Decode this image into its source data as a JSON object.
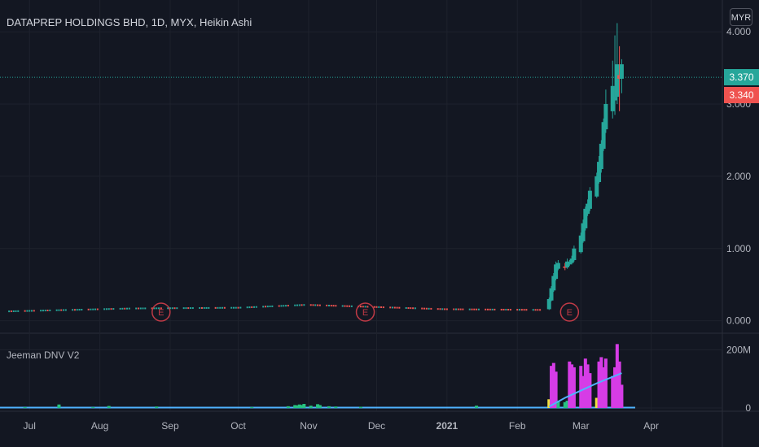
{
  "header": {
    "title": "DATAPREP HOLDINGS BHD, 1D, MYX, Heikin Ashi",
    "currency": "MYR"
  },
  "price_tags": {
    "last": "3.370",
    "prev": "3.340"
  },
  "indicator": {
    "title": "Jeeman DNV V2"
  },
  "colors": {
    "bg": "#131722",
    "up": "#26a69a",
    "down": "#ef5350",
    "grid": "#1e222d",
    "magenta": "#d63ce6",
    "green_vol": "#26c281",
    "yellow_vol": "#f0e23c",
    "ma": "#4fb3ff",
    "earn": "#c03a46"
  },
  "chart_data": [
    {
      "type": "candlestick",
      "title": "DATAPREP HOLDINGS BHD, 1D, MYX, Heikin Ashi",
      "y_ticks": [
        "4.000",
        "3.000",
        "2.000",
        "1.000",
        "0.000"
      ],
      "ylim": [
        -0.15,
        4.35
      ],
      "x_ticks": [
        "Jul",
        "Aug",
        "Sep",
        "Oct",
        "Nov",
        "Dec",
        "2021",
        "Feb",
        "Mar",
        "Apr"
      ],
      "x_tick_dates": [
        "2020-07-01",
        "2020-08-01",
        "2020-09-01",
        "2020-10-01",
        "2020-11-01",
        "2020-12-01",
        "2021-01-01",
        "2021-02-01",
        "2021-03-01",
        "2021-04-01"
      ],
      "x_range": [
        "2020-06-18",
        "2021-05-02"
      ],
      "earnings_markers": {
        "label": "E",
        "dates": [
          "2020-08-28",
          "2020-11-26",
          "2021-02-24"
        ]
      },
      "price_lines": [
        3.37,
        3.34
      ],
      "series_segments": [
        {
          "from": "2020-06-22",
          "to": "2020-08-15",
          "start": 0.13,
          "end": 0.17
        },
        {
          "from": "2020-08-15",
          "to": "2020-10-01",
          "start": 0.17,
          "end": 0.18
        },
        {
          "from": "2020-10-01",
          "to": "2020-10-31",
          "start": 0.18,
          "end": 0.22
        },
        {
          "from": "2020-10-31",
          "to": "2020-12-31",
          "start": 0.22,
          "end": 0.16
        },
        {
          "from": "2020-12-31",
          "to": "2021-02-12",
          "start": 0.16,
          "end": 0.15
        }
      ],
      "series_rally": [
        {
          "date": "2021-02-15",
          "open": 0.16,
          "close": 0.3,
          "high": 0.32,
          "low": 0.15
        },
        {
          "date": "2021-02-16",
          "open": 0.28,
          "close": 0.45,
          "high": 0.48,
          "low": 0.27
        },
        {
          "date": "2021-02-17",
          "open": 0.42,
          "close": 0.62,
          "high": 0.66,
          "low": 0.4
        },
        {
          "date": "2021-02-18",
          "open": 0.58,
          "close": 0.78,
          "high": 0.82,
          "low": 0.56
        },
        {
          "date": "2021-02-19",
          "open": 0.72,
          "close": 0.8,
          "high": 0.84,
          "low": 0.7
        },
        {
          "date": "2021-02-22",
          "open": 0.75,
          "close": 0.74,
          "high": 0.8,
          "low": 0.7
        },
        {
          "date": "2021-02-23",
          "open": 0.74,
          "close": 0.82,
          "high": 0.86,
          "low": 0.72
        },
        {
          "date": "2021-02-24",
          "open": 0.78,
          "close": 0.8,
          "high": 0.84,
          "low": 0.76
        },
        {
          "date": "2021-02-25",
          "open": 0.8,
          "close": 0.86,
          "high": 0.9,
          "low": 0.78
        },
        {
          "date": "2021-02-26",
          "open": 0.84,
          "close": 1.0,
          "high": 1.04,
          "low": 0.82
        },
        {
          "date": "2021-03-01",
          "open": 0.95,
          "close": 1.18,
          "high": 1.22,
          "low": 0.93
        },
        {
          "date": "2021-03-02",
          "open": 1.1,
          "close": 1.35,
          "high": 1.4,
          "low": 1.08
        },
        {
          "date": "2021-03-03",
          "open": 1.28,
          "close": 1.55,
          "high": 1.58,
          "low": 1.25
        },
        {
          "date": "2021-03-04",
          "open": 1.48,
          "close": 1.62,
          "high": 1.68,
          "low": 1.45
        },
        {
          "date": "2021-03-05",
          "open": 1.55,
          "close": 1.8,
          "high": 1.85,
          "low": 1.52
        },
        {
          "date": "2021-03-08",
          "open": 1.72,
          "close": 2.0,
          "high": 2.05,
          "low": 1.7
        },
        {
          "date": "2021-03-09",
          "open": 1.92,
          "close": 2.2,
          "high": 2.28,
          "low": 1.9
        },
        {
          "date": "2021-03-10",
          "open": 2.1,
          "close": 2.45,
          "high": 2.5,
          "low": 2.05
        },
        {
          "date": "2021-03-11",
          "open": 2.38,
          "close": 2.75,
          "high": 2.8,
          "low": 2.35
        },
        {
          "date": "2021-03-12",
          "open": 2.65,
          "close": 3.0,
          "high": 3.2,
          "low": 2.6
        },
        {
          "date": "2021-03-15",
          "open": 2.9,
          "close": 3.25,
          "high": 3.6,
          "low": 2.8
        },
        {
          "date": "2021-03-16",
          "open": 3.05,
          "close": 3.1,
          "high": 3.95,
          "low": 2.85
        },
        {
          "date": "2021-03-17",
          "open": 3.1,
          "close": 3.55,
          "high": 4.12,
          "low": 3.0
        },
        {
          "date": "2021-03-18",
          "open": 3.4,
          "close": 3.35,
          "high": 3.8,
          "low": 2.9
        },
        {
          "date": "2021-03-19",
          "open": 3.35,
          "close": 3.55,
          "high": 3.62,
          "low": 3.15
        }
      ]
    },
    {
      "type": "bar",
      "title": "Jeeman DNV V2",
      "y_ticks": [
        "200M",
        "0"
      ],
      "ylim": [
        0,
        235000000
      ],
      "baseline": 1500000,
      "small_bars": [
        {
          "date": "2020-06-29",
          "value": 3000000
        },
        {
          "date": "2020-07-14",
          "value": 12000000
        },
        {
          "date": "2020-07-29",
          "value": 3000000
        },
        {
          "date": "2020-08-05",
          "value": 7000000
        },
        {
          "date": "2020-08-26",
          "value": 5000000
        },
        {
          "date": "2020-10-07",
          "value": 3000000
        },
        {
          "date": "2020-10-23",
          "value": 6000000
        },
        {
          "date": "2020-10-26",
          "value": 10000000
        },
        {
          "date": "2020-10-27",
          "value": 9000000
        },
        {
          "date": "2020-10-28",
          "value": 12000000
        },
        {
          "date": "2020-10-29",
          "value": 10000000
        },
        {
          "date": "2020-10-30",
          "value": 14000000
        },
        {
          "date": "2020-11-02",
          "value": 8000000
        },
        {
          "date": "2020-11-05",
          "value": 13000000
        },
        {
          "date": "2020-11-06",
          "value": 10000000
        },
        {
          "date": "2020-11-10",
          "value": 6000000
        },
        {
          "date": "2020-11-13",
          "value": 5000000
        },
        {
          "date": "2020-11-24",
          "value": 4000000
        },
        {
          "date": "2021-01-14",
          "value": 8000000
        }
      ],
      "bars": [
        {
          "date": "2021-02-15",
          "value": 30000000,
          "color": "yellow"
        },
        {
          "date": "2021-02-16",
          "value": 145000000,
          "color": "magenta"
        },
        {
          "date": "2021-02-17",
          "value": 155000000,
          "color": "magenta"
        },
        {
          "date": "2021-02-18",
          "value": 125000000,
          "color": "magenta"
        },
        {
          "date": "2021-02-19",
          "value": 25000000,
          "color": "green"
        },
        {
          "date": "2021-02-22",
          "value": 20000000,
          "color": "green"
        },
        {
          "date": "2021-02-23",
          "value": 25000000,
          "color": "green"
        },
        {
          "date": "2021-02-24",
          "value": 160000000,
          "color": "magenta"
        },
        {
          "date": "2021-02-25",
          "value": 150000000,
          "color": "magenta"
        },
        {
          "date": "2021-02-26",
          "value": 140000000,
          "color": "magenta"
        },
        {
          "date": "2021-03-01",
          "value": 145000000,
          "color": "magenta"
        },
        {
          "date": "2021-03-02",
          "value": 110000000,
          "color": "magenta"
        },
        {
          "date": "2021-03-03",
          "value": 170000000,
          "color": "magenta"
        },
        {
          "date": "2021-03-04",
          "value": 150000000,
          "color": "magenta"
        },
        {
          "date": "2021-03-05",
          "value": 120000000,
          "color": "magenta"
        },
        {
          "date": "2021-03-08",
          "value": 35000000,
          "color": "yellow"
        },
        {
          "date": "2021-03-09",
          "value": 160000000,
          "color": "magenta"
        },
        {
          "date": "2021-03-10",
          "value": 175000000,
          "color": "magenta"
        },
        {
          "date": "2021-03-11",
          "value": 140000000,
          "color": "magenta"
        },
        {
          "date": "2021-03-12",
          "value": 170000000,
          "color": "magenta"
        },
        {
          "date": "2021-03-15",
          "value": 110000000,
          "color": "magenta"
        },
        {
          "date": "2021-03-16",
          "value": 140000000,
          "color": "magenta"
        },
        {
          "date": "2021-03-17",
          "value": 220000000,
          "color": "magenta"
        },
        {
          "date": "2021-03-18",
          "value": 160000000,
          "color": "magenta"
        },
        {
          "date": "2021-03-19",
          "value": 80000000,
          "color": "magenta"
        }
      ],
      "moving_average": [
        {
          "date": "2021-02-15",
          "value": 5000000
        },
        {
          "date": "2021-02-22",
          "value": 35000000
        },
        {
          "date": "2021-03-01",
          "value": 60000000
        },
        {
          "date": "2021-03-08",
          "value": 85000000
        },
        {
          "date": "2021-03-19",
          "value": 120000000
        }
      ]
    }
  ]
}
